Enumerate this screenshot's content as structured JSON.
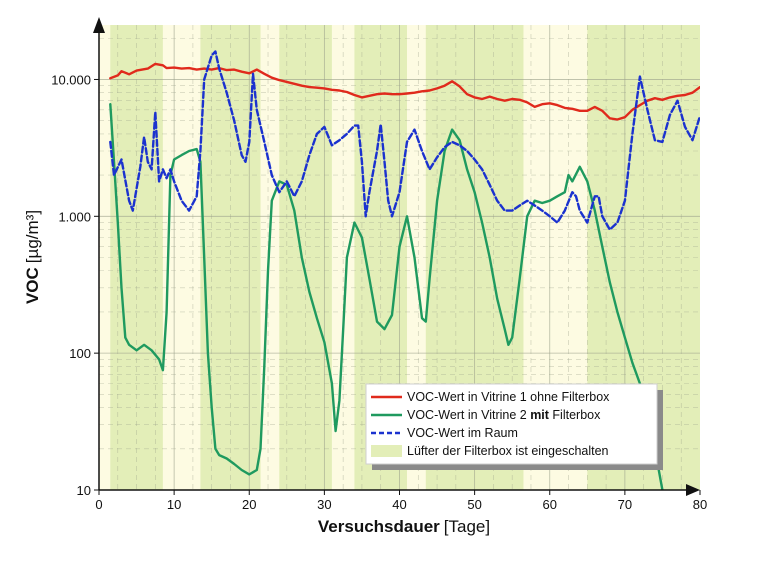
{
  "chart_data": {
    "type": "line",
    "title": "",
    "xlabel_bold": "Versuchsdauer",
    "xlabel_unit": "[Tage]",
    "ylabel_bold": "VOC",
    "ylabel_unit": "[µg/m³]",
    "xlim": [
      0,
      80
    ],
    "ylim": [
      10,
      25000
    ],
    "y_scale": "log",
    "grid": true,
    "legend_position": "bottom-right",
    "x_ticks": [
      0,
      10,
      20,
      30,
      40,
      50,
      60,
      70,
      80
    ],
    "x_tick_labels": [
      "0",
      "10",
      "20",
      "30",
      "40",
      "50",
      "60",
      "70",
      "80"
    ],
    "y_ticks": [
      10,
      100,
      1000,
      10000
    ],
    "y_tick_labels": [
      "10",
      "100",
      "1.000",
      "10.000"
    ],
    "fan_on_periods": [
      [
        1.5,
        8.5
      ],
      [
        13.5,
        21.5
      ],
      [
        24,
        31
      ],
      [
        34,
        41
      ],
      [
        43.5,
        56.5
      ],
      [
        65,
        80
      ]
    ],
    "series": [
      {
        "name": "VOC-Wert in Vitrine 1 ohne Filterbox",
        "color": "#e02a1c",
        "style": "solid",
        "points": [
          [
            1.5,
            10200
          ],
          [
            2.5,
            10700
          ],
          [
            3,
            11500
          ],
          [
            4,
            10900
          ],
          [
            5,
            11600
          ],
          [
            6.5,
            12000
          ],
          [
            7.5,
            13000
          ],
          [
            8.5,
            12700
          ],
          [
            9,
            12100
          ],
          [
            10,
            12200
          ],
          [
            11,
            12000
          ],
          [
            12,
            12100
          ],
          [
            13,
            11800
          ],
          [
            14,
            12000
          ],
          [
            15,
            11800
          ],
          [
            16,
            12100
          ],
          [
            17,
            11700
          ],
          [
            18,
            11800
          ],
          [
            19,
            11400
          ],
          [
            20,
            11100
          ],
          [
            21,
            11800
          ],
          [
            22,
            11000
          ],
          [
            23,
            10300
          ],
          [
            24,
            9900
          ],
          [
            25,
            9600
          ],
          [
            26,
            9300
          ],
          [
            27,
            9000
          ],
          [
            28,
            8800
          ],
          [
            29,
            8700
          ],
          [
            30,
            8600
          ],
          [
            31,
            8400
          ],
          [
            32,
            8300
          ],
          [
            33,
            8100
          ],
          [
            34,
            7700
          ],
          [
            35,
            7400
          ],
          [
            36,
            7600
          ],
          [
            37,
            7800
          ],
          [
            38,
            7900
          ],
          [
            39,
            7800
          ],
          [
            40,
            7800
          ],
          [
            41,
            7900
          ],
          [
            42,
            8000
          ],
          [
            43,
            8200
          ],
          [
            44,
            8300
          ],
          [
            45,
            8600
          ],
          [
            46,
            9000
          ],
          [
            47,
            9700
          ],
          [
            48,
            8900
          ],
          [
            49,
            7800
          ],
          [
            50,
            7400
          ],
          [
            51,
            7200
          ],
          [
            52,
            7500
          ],
          [
            53,
            7200
          ],
          [
            54,
            7000
          ],
          [
            55,
            7200
          ],
          [
            56,
            7100
          ],
          [
            57,
            6800
          ],
          [
            58,
            6300
          ],
          [
            59,
            6600
          ],
          [
            60,
            6700
          ],
          [
            61,
            6500
          ],
          [
            62,
            6200
          ],
          [
            63,
            6100
          ],
          [
            64,
            5900
          ],
          [
            65,
            5900
          ],
          [
            66,
            6300
          ],
          [
            67,
            5900
          ],
          [
            68,
            5200
          ],
          [
            69,
            5100
          ],
          [
            70,
            5300
          ],
          [
            71,
            6000
          ],
          [
            72,
            6500
          ],
          [
            73,
            7000
          ],
          [
            74,
            7300
          ],
          [
            75,
            7100
          ],
          [
            76,
            7400
          ],
          [
            77,
            7600
          ],
          [
            78,
            7700
          ],
          [
            79,
            8000
          ],
          [
            80,
            8800
          ]
        ]
      },
      {
        "name": "VOC-Wert in Vitrine 2 mit Filterbox",
        "color": "#1f9a5f",
        "style": "solid",
        "points": [
          [
            1.5,
            6600
          ],
          [
            2,
            2500
          ],
          [
            2.5,
            900
          ],
          [
            3,
            300
          ],
          [
            3.5,
            130
          ],
          [
            4,
            115
          ],
          [
            5,
            105
          ],
          [
            6,
            115
          ],
          [
            7,
            105
          ],
          [
            8,
            90
          ],
          [
            8.5,
            75
          ],
          [
            9,
            200
          ],
          [
            9.5,
            2000
          ],
          [
            10,
            2600
          ],
          [
            11,
            2800
          ],
          [
            12,
            3000
          ],
          [
            13,
            3100
          ],
          [
            13.5,
            2500
          ],
          [
            14,
            500
          ],
          [
            14.5,
            100
          ],
          [
            15,
            40
          ],
          [
            15.5,
            20
          ],
          [
            16,
            18
          ],
          [
            17,
            17
          ],
          [
            18,
            15.5
          ],
          [
            19,
            14
          ],
          [
            20,
            13
          ],
          [
            21,
            14
          ],
          [
            21.5,
            20
          ],
          [
            22,
            80
          ],
          [
            22.5,
            400
          ],
          [
            23,
            1300
          ],
          [
            24,
            1800
          ],
          [
            25,
            1700
          ],
          [
            26,
            1100
          ],
          [
            27,
            500
          ],
          [
            28,
            280
          ],
          [
            29,
            180
          ],
          [
            30,
            120
          ],
          [
            31,
            60
          ],
          [
            31.5,
            27
          ],
          [
            32,
            45
          ],
          [
            32.5,
            150
          ],
          [
            33,
            500
          ],
          [
            34,
            900
          ],
          [
            35,
            700
          ],
          [
            36,
            350
          ],
          [
            37,
            170
          ],
          [
            38,
            150
          ],
          [
            39,
            190
          ],
          [
            40,
            600
          ],
          [
            41,
            1000
          ],
          [
            42,
            500
          ],
          [
            43,
            180
          ],
          [
            43.5,
            170
          ],
          [
            44,
            350
          ],
          [
            45,
            1300
          ],
          [
            46,
            3000
          ],
          [
            47,
            4300
          ],
          [
            48,
            3600
          ],
          [
            49,
            2200
          ],
          [
            50,
            1500
          ],
          [
            51,
            900
          ],
          [
            52,
            500
          ],
          [
            53,
            250
          ],
          [
            54,
            150
          ],
          [
            54.5,
            115
          ],
          [
            55,
            130
          ],
          [
            56,
            350
          ],
          [
            57,
            1000
          ],
          [
            58,
            1300
          ],
          [
            59,
            1250
          ],
          [
            60,
            1300
          ],
          [
            61,
            1400
          ],
          [
            62,
            1500
          ],
          [
            62.5,
            2000
          ],
          [
            63,
            1800
          ],
          [
            64,
            2300
          ],
          [
            65,
            1800
          ],
          [
            66,
            1100
          ],
          [
            67,
            600
          ],
          [
            68,
            330
          ],
          [
            69,
            200
          ],
          [
            70,
            130
          ],
          [
            71,
            85
          ],
          [
            72,
            60
          ],
          [
            73,
            40
          ],
          [
            74,
            20
          ],
          [
            75,
            10
          ]
        ]
      },
      {
        "name": "VOC-Wert im Raum",
        "color": "#1b32cf",
        "style": "dashed",
        "points": [
          [
            1.5,
            3500
          ],
          [
            2,
            2000
          ],
          [
            3,
            2600
          ],
          [
            4,
            1300
          ],
          [
            4.5,
            1100
          ],
          [
            5,
            1600
          ],
          [
            5.5,
            2300
          ],
          [
            6,
            3800
          ],
          [
            6.5,
            2500
          ],
          [
            7,
            2200
          ],
          [
            7.5,
            5800
          ],
          [
            8,
            1800
          ],
          [
            8.5,
            2200
          ],
          [
            9,
            1900
          ],
          [
            9.5,
            2200
          ],
          [
            10,
            1800
          ],
          [
            11,
            1300
          ],
          [
            12,
            1100
          ],
          [
            13,
            1400
          ],
          [
            13.5,
            3000
          ],
          [
            14,
            10000
          ],
          [
            15,
            15000
          ],
          [
            15.5,
            16000
          ],
          [
            16,
            12000
          ],
          [
            17,
            8000
          ],
          [
            18,
            5000
          ],
          [
            19,
            2800
          ],
          [
            19.5,
            2500
          ],
          [
            20,
            3500
          ],
          [
            20.5,
            11000
          ],
          [
            21,
            6000
          ],
          [
            22,
            3500
          ],
          [
            23,
            2000
          ],
          [
            24,
            1500
          ],
          [
            25,
            1800
          ],
          [
            26,
            1400
          ],
          [
            27,
            1800
          ],
          [
            28,
            2800
          ],
          [
            29,
            4000
          ],
          [
            30,
            4500
          ],
          [
            31,
            3300
          ],
          [
            32,
            3600
          ],
          [
            33,
            4000
          ],
          [
            34,
            4600
          ],
          [
            34.5,
            4600
          ],
          [
            35,
            2500
          ],
          [
            35.5,
            1000
          ],
          [
            36,
            1500
          ],
          [
            37,
            3000
          ],
          [
            37.5,
            4700
          ],
          [
            38,
            2500
          ],
          [
            38.5,
            1300
          ],
          [
            39,
            1000
          ],
          [
            40,
            1500
          ],
          [
            41,
            3500
          ],
          [
            42,
            4300
          ],
          [
            43,
            3000
          ],
          [
            44,
            2200
          ],
          [
            45,
            2700
          ],
          [
            46,
            3200
          ],
          [
            47,
            3500
          ],
          [
            48,
            3300
          ],
          [
            49,
            3000
          ],
          [
            50,
            2600
          ],
          [
            51,
            2200
          ],
          [
            52,
            1700
          ],
          [
            53,
            1300
          ],
          [
            54,
            1100
          ],
          [
            55,
            1100
          ],
          [
            56,
            1200
          ],
          [
            57,
            1300
          ],
          [
            58,
            1200
          ],
          [
            59,
            1100
          ],
          [
            60,
            1000
          ],
          [
            61,
            900
          ],
          [
            62,
            1100
          ],
          [
            63,
            1500
          ],
          [
            63.5,
            1400
          ],
          [
            64,
            1100
          ],
          [
            65,
            900
          ],
          [
            66,
            1400
          ],
          [
            66.5,
            1400
          ],
          [
            67,
            1000
          ],
          [
            68,
            800
          ],
          [
            69,
            900
          ],
          [
            70,
            1300
          ],
          [
            71,
            4000
          ],
          [
            72,
            10500
          ],
          [
            73,
            6000
          ],
          [
            74,
            3600
          ],
          [
            75,
            3500
          ],
          [
            76,
            5500
          ],
          [
            77,
            7000
          ],
          [
            78,
            4500
          ],
          [
            79,
            3600
          ],
          [
            80,
            5400
          ]
        ]
      },
      {
        "name": "Lüfter der Filterbox ist eingeschalten",
        "color": "#e3eeb8",
        "style": "area"
      }
    ]
  },
  "colors": {
    "plot_background": "#fdfbe2",
    "fan_on_fill": "#e3eeb8",
    "grid": "#9aa08a"
  }
}
